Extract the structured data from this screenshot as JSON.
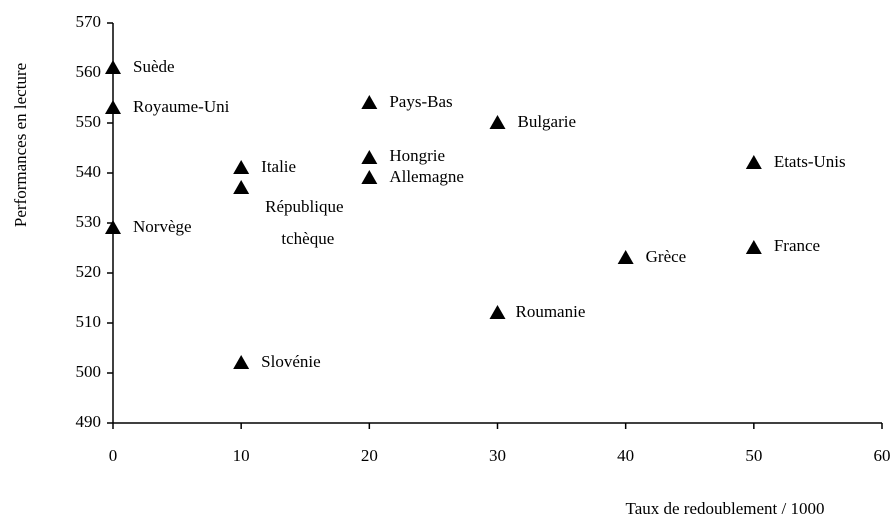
{
  "chart_data": {
    "type": "scatter",
    "x_label": "Taux de redoublement / 1000",
    "y_label": "Performances en lecture",
    "labels": [
      "Suède",
      "Royaume-Uni",
      "Norvège",
      "Italie",
      "République tchèque",
      "Slovénie",
      "Pays-Bas",
      "Hongrie",
      "Allemagne",
      "Bulgarie",
      "Roumanie",
      "Grèce",
      "Etats-Unis",
      "France"
    ],
    "x": [
      0,
      0,
      0,
      10,
      10,
      10,
      20,
      20,
      20,
      30,
      30,
      40,
      50,
      50
    ],
    "values": [
      561,
      553,
      529,
      541,
      537,
      502,
      554,
      543,
      539,
      550,
      512,
      523,
      542,
      525
    ],
    "color": "#000000",
    "xlim": [
      0,
      60
    ],
    "xticks": [
      0,
      10,
      20,
      30,
      40,
      50,
      60
    ],
    "ylim": [
      490,
      570
    ],
    "yticks": [
      490,
      500,
      510,
      520,
      530,
      540,
      550,
      560,
      570
    ],
    "grid": false
  }
}
